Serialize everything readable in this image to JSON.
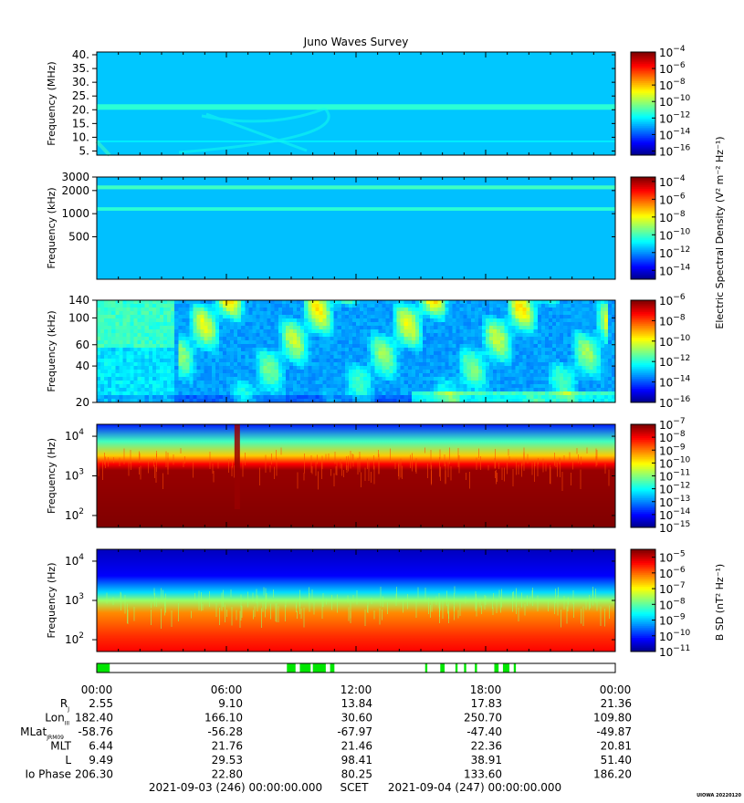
{
  "title": "Juno Waves Survey",
  "footer": {
    "start": "2021-09-03 (246) 00:00:00.000",
    "scet": "SCET",
    "end": "2021-09-04 (247) 00:00:00.000",
    "stamp": "UIOWA 20220120"
  },
  "colorbar_labels": {
    "electric": "Electric Spectral Density (V² m⁻² Hz⁻¹)",
    "magnetic": "B SD (nT² Hz⁻¹)"
  },
  "ephemeris": {
    "time_ticks": [
      "00:00",
      "06:00",
      "12:00",
      "18:00",
      "00:00"
    ],
    "rows": [
      {
        "label": "R",
        "sub": "J",
        "values": [
          "2.55",
          "9.10",
          "13.84",
          "17.83",
          "21.36"
        ]
      },
      {
        "label": "Lon",
        "sub": "III",
        "values": [
          "182.40",
          "166.10",
          "30.60",
          "250.70",
          "109.80"
        ]
      },
      {
        "label": "MLat",
        "sub": "JRM09",
        "values": [
          "-58.76",
          "-56.28",
          "-67.97",
          "-47.40",
          "-49.87"
        ]
      },
      {
        "label": "MLT",
        "sub": "",
        "values": [
          "6.44",
          "21.76",
          "21.46",
          "22.36",
          "20.81"
        ]
      },
      {
        "label": "L",
        "sub": "",
        "values": [
          "9.49",
          "29.53",
          "98.41",
          "38.91",
          "51.40"
        ]
      },
      {
        "label": "Io Phase",
        "sub": "",
        "values": [
          "206.30",
          "22.80",
          "80.25",
          "133.60",
          "186.20"
        ]
      }
    ]
  },
  "chart_data": [
    {
      "type": "heatmap",
      "panel": "hfr-high",
      "ylabel": "Frequency (MHz)",
      "yscale": "linear",
      "ylim": [
        3.5,
        41
      ],
      "yticks": [
        {
          "v": 5,
          "t": "5."
        },
        {
          "v": 10,
          "t": "10."
        },
        {
          "v": 15,
          "t": "15."
        },
        {
          "v": 20,
          "t": "20."
        },
        {
          "v": 25,
          "t": "25."
        },
        {
          "v": 30,
          "t": "30."
        },
        {
          "v": 35,
          "t": "35."
        },
        {
          "v": 40,
          "t": "40."
        }
      ],
      "colorbar": {
        "min_exp": -16.5,
        "max_exp": -4,
        "ticks": [
          -4,
          -6,
          -8,
          -10,
          -12,
          -14,
          -16
        ]
      },
      "background_exp": -12.5,
      "features": [
        {
          "kind": "band",
          "y": 21,
          "width": 2,
          "exp": -11.3
        },
        {
          "kind": "band",
          "y": 8.5,
          "width": 0.6,
          "exp": -12.0
        }
      ]
    },
    {
      "type": "heatmap",
      "panel": "hfr-low",
      "ylabel": "Frequency (kHz)",
      "yscale": "log",
      "ylim": [
        140,
        3000
      ],
      "yticks": [
        {
          "v": 500,
          "t": "500"
        },
        {
          "v": 1000,
          "t": "1000"
        },
        {
          "v": 2000,
          "t": "2000"
        },
        {
          "v": 3000,
          "t": "3000"
        }
      ],
      "colorbar": {
        "min_exp": -15,
        "max_exp": -3.5,
        "ticks": [
          -4,
          -6,
          -8,
          -10,
          -12,
          -14
        ]
      },
      "background_exp": -11.4,
      "features": [
        {
          "kind": "band",
          "y": 2200,
          "width": 250,
          "exp": -10.0
        },
        {
          "kind": "band",
          "y": 1150,
          "width": 120,
          "exp": -10.2
        }
      ]
    },
    {
      "type": "heatmap",
      "panel": "lfr-high",
      "ylabel": "Frequency (kHz)",
      "yscale": "log",
      "ylim": [
        20,
        140
      ],
      "yticks": [
        {
          "v": 20,
          "t": "20"
        },
        {
          "v": 40,
          "t": "40"
        },
        {
          "v": 60,
          "t": "60"
        },
        {
          "v": 100,
          "t": "100"
        },
        {
          "v": 140,
          "t": "140"
        }
      ],
      "colorbar": {
        "min_exp": -16,
        "max_exp": -6,
        "ticks": [
          -6,
          -8,
          -10,
          -12,
          -14,
          -16
        ]
      },
      "background_exp": -13.2,
      "features": [
        {
          "kind": "bursts",
          "exp": -10.6
        }
      ]
    },
    {
      "type": "heatmap",
      "panel": "lfr-low",
      "ylabel": "Frequency (Hz)",
      "yscale": "log",
      "ylim": [
        50,
        20000
      ],
      "yticks": [
        {
          "v": 100,
          "t": "10",
          "e": "2"
        },
        {
          "v": 1000,
          "t": "10",
          "e": "3"
        },
        {
          "v": 10000,
          "t": "10",
          "e": "4"
        }
      ],
      "colorbar": {
        "min_exp": -15,
        "max_exp": -7,
        "ticks": [
          -7,
          -8,
          -9,
          -10,
          -11,
          -12,
          -13,
          -14,
          -15
        ]
      },
      "cutoff_hz": 2000,
      "features": [
        {
          "kind": "spike",
          "hour": 6.5,
          "exp": -7.2
        }
      ]
    },
    {
      "type": "heatmap",
      "panel": "magnetic",
      "ylabel": "Frequency (Hz)",
      "yscale": "log",
      "ylim": [
        50,
        20000
      ],
      "yticks": [
        {
          "v": 100,
          "t": "10",
          "e": "2"
        },
        {
          "v": 1000,
          "t": "10",
          "e": "3"
        },
        {
          "v": 10000,
          "t": "10",
          "e": "4"
        }
      ],
      "colorbar": {
        "min_exp": -11,
        "max_exp": -4.5,
        "ticks": [
          -5,
          -6,
          -7,
          -8,
          -9,
          -10,
          -11
        ]
      },
      "cutoff_hz": 900
    },
    {
      "type": "table",
      "panel": "mode-bar",
      "description_of_values": "green segments where survey mode is active (hours)",
      "segments": [
        [
          0,
          0.6
        ],
        [
          8.8,
          9.2
        ],
        [
          9.4,
          9.9
        ],
        [
          10.0,
          10.6
        ],
        [
          10.8,
          11.0
        ],
        [
          15.2,
          15.3
        ],
        [
          15.9,
          16.1
        ],
        [
          16.6,
          16.7
        ],
        [
          17.0,
          17.1
        ],
        [
          17.5,
          17.6
        ],
        [
          18.4,
          18.6
        ],
        [
          18.8,
          19.1
        ],
        [
          19.3,
          19.4
        ]
      ]
    }
  ]
}
